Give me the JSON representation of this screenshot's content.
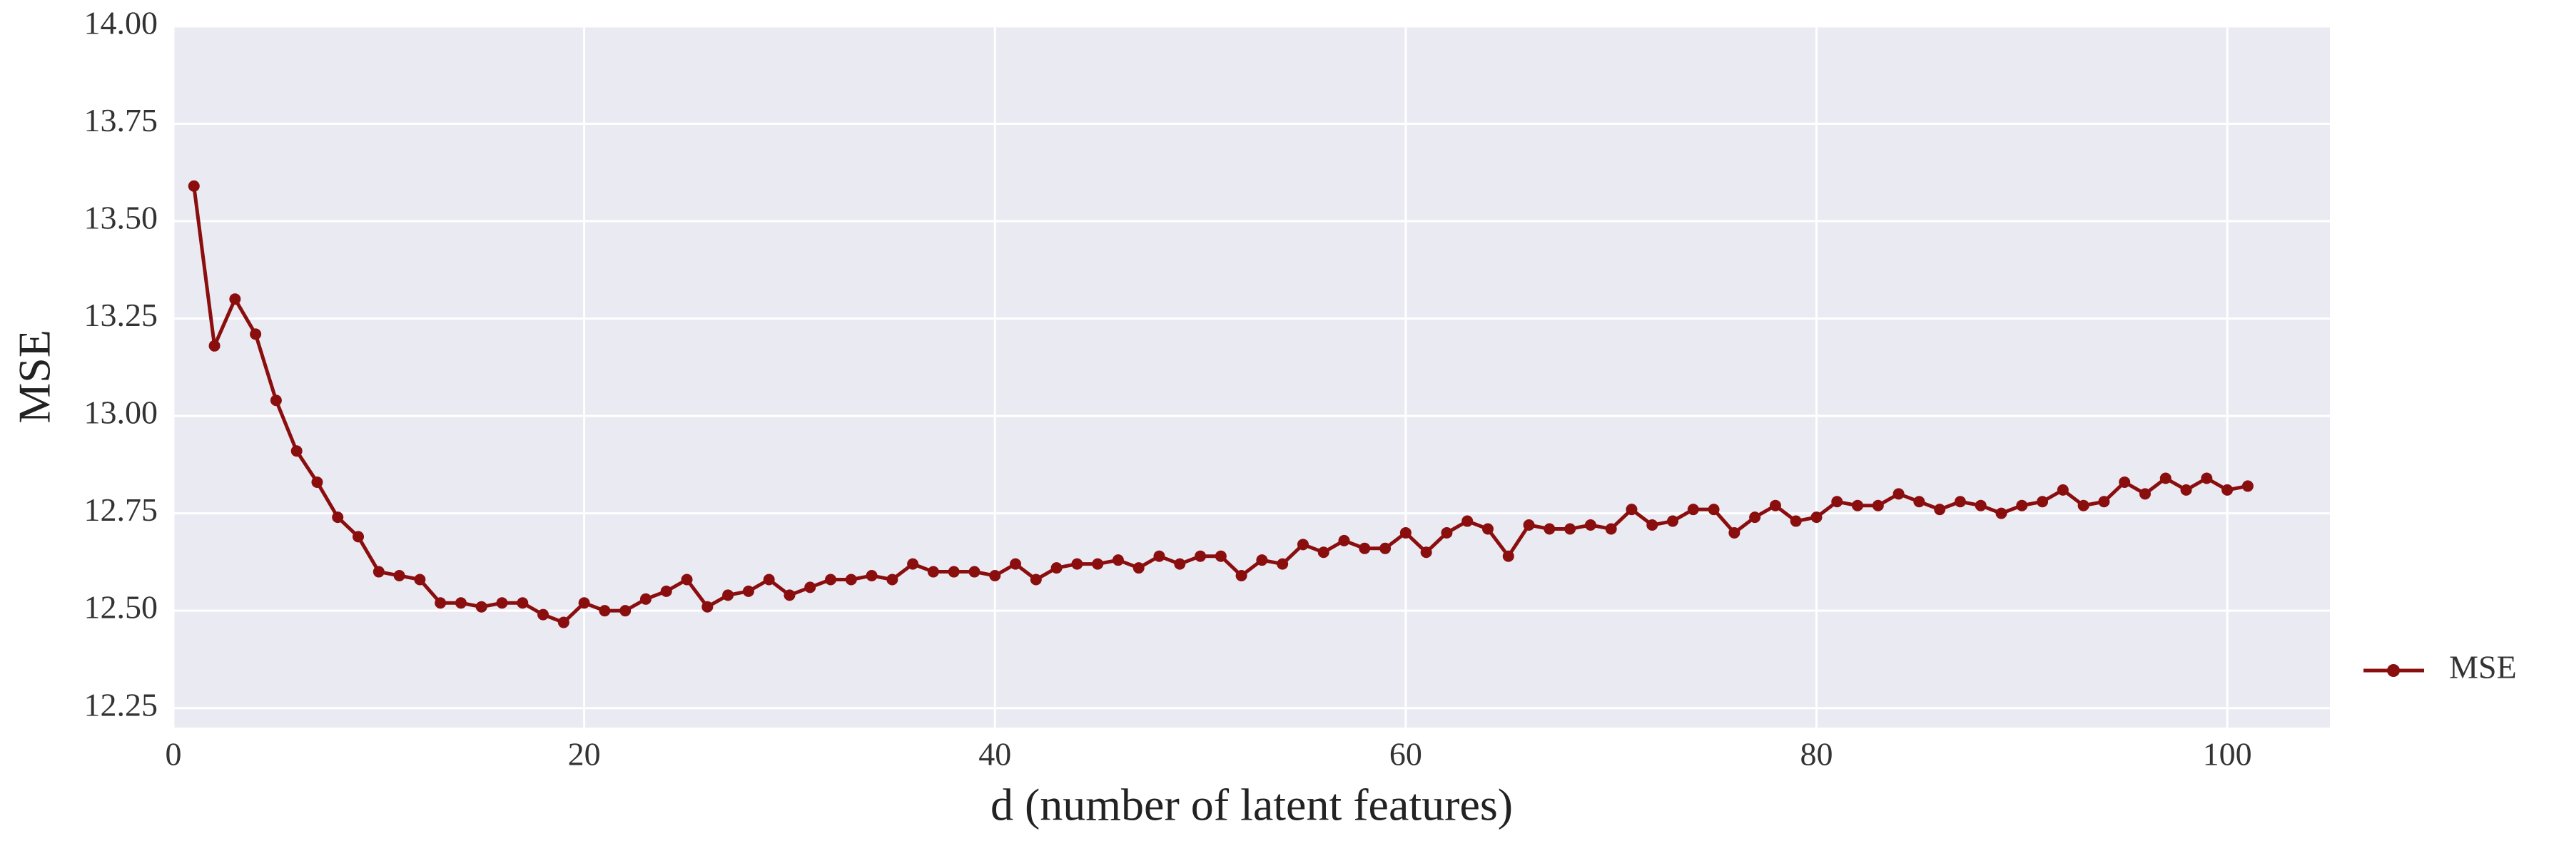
{
  "chart_data": {
    "type": "line",
    "xlabel": "d (number of latent features)",
    "ylabel": "MSE",
    "x": [
      1,
      2,
      3,
      4,
      5,
      6,
      7,
      8,
      9,
      10,
      11,
      12,
      13,
      14,
      15,
      16,
      17,
      18,
      19,
      20,
      21,
      22,
      23,
      24,
      25,
      26,
      27,
      28,
      29,
      30,
      31,
      32,
      33,
      34,
      35,
      36,
      37,
      38,
      39,
      40,
      41,
      42,
      43,
      44,
      45,
      46,
      47,
      48,
      49,
      50,
      51,
      52,
      53,
      54,
      55,
      56,
      57,
      58,
      59,
      60,
      61,
      62,
      63,
      64,
      65,
      66,
      67,
      68,
      69,
      70,
      71,
      72,
      73,
      74,
      75,
      76,
      77,
      78,
      79,
      80,
      81,
      82,
      83,
      84,
      85,
      86,
      87,
      88,
      89,
      90,
      91,
      92,
      93,
      94,
      95,
      96,
      97,
      98,
      99,
      100,
      101
    ],
    "series": [
      {
        "name": "MSE",
        "color": "#8b0e0e",
        "values": [
          13.59,
          13.18,
          13.3,
          13.21,
          13.04,
          12.91,
          12.83,
          12.74,
          12.69,
          12.6,
          12.59,
          12.58,
          12.52,
          12.52,
          12.51,
          12.52,
          12.52,
          12.49,
          12.47,
          12.52,
          12.5,
          12.5,
          12.53,
          12.55,
          12.58,
          12.51,
          12.54,
          12.55,
          12.58,
          12.54,
          12.56,
          12.58,
          12.58,
          12.59,
          12.58,
          12.62,
          12.6,
          12.6,
          12.6,
          12.59,
          12.62,
          12.58,
          12.61,
          12.62,
          12.62,
          12.63,
          12.61,
          12.64,
          12.62,
          12.64,
          12.64,
          12.59,
          12.63,
          12.62,
          12.67,
          12.65,
          12.68,
          12.66,
          12.66,
          12.7,
          12.65,
          12.7,
          12.73,
          12.71,
          12.64,
          12.72,
          12.71,
          12.71,
          12.72,
          12.71,
          12.76,
          12.72,
          12.73,
          12.76,
          12.76,
          12.7,
          12.74,
          12.77,
          12.73,
          12.74,
          12.78,
          12.77,
          12.77,
          12.8,
          12.78,
          12.76,
          12.78,
          12.77,
          12.75,
          12.77,
          12.78,
          12.81,
          12.77,
          12.78,
          12.83,
          12.8,
          12.84,
          12.81,
          12.84,
          12.81,
          12.82
        ]
      }
    ],
    "xlim": [
      0,
      105
    ],
    "xticks": [
      0,
      20,
      40,
      60,
      80,
      100
    ],
    "ylim": [
      12.2,
      14.0
    ],
    "yticks": [
      12.25,
      {
        "value": 12.5,
        "label": "12.50"
      },
      12.75,
      {
        "value": 13,
        "label": "13.00"
      },
      13.25,
      {
        "value": 13.5,
        "label": "13.50"
      },
      13.75,
      {
        "value": 14,
        "label": "14.00"
      }
    ],
    "grid": true,
    "background": "#eaeaf2",
    "legend": "right"
  }
}
